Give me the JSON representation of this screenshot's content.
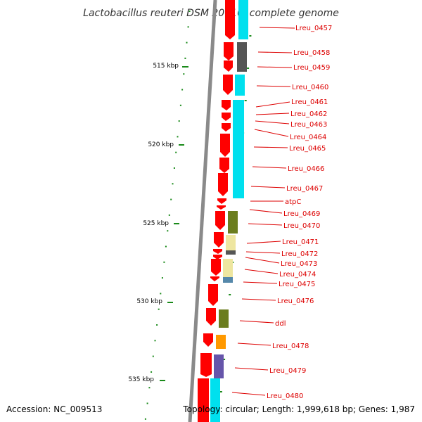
{
  "title": "Lactobacillus reuteri DSM 20016, complete genome",
  "accession": "Accession: NC_009513",
  "summary": "Topology: circular; Length: 1,999,618 bp; Genes: 1,987",
  "colors": {
    "gene_arrow": "#ff0000",
    "label": "#dd0000",
    "backbone": "#888888",
    "tick": "#1a8a1a",
    "cog_cyan": "#00e0ee",
    "cog_gray": "#555555",
    "cog_olive": "#6b7d1e",
    "cog_khaki": "#eee6a0",
    "cog_orange": "#ff9900",
    "cog_purple": "#6655aa"
  },
  "scale": {
    "kbp_labels": [
      "515 kbp",
      "520 kbp",
      "525 kbp",
      "530 kbp",
      "535 kbp"
    ]
  },
  "genes": [
    {
      "label": "Lreu_0457",
      "cog": "cyan"
    },
    {
      "label": "Lreu_0458",
      "cog": "gray"
    },
    {
      "label": "Lreu_0459",
      "cog": "gray"
    },
    {
      "label": "Lreu_0460",
      "cog": "cyan"
    },
    {
      "label": "Lreu_0461",
      "cog": "cyan"
    },
    {
      "label": "Lreu_0462",
      "cog": "cyan"
    },
    {
      "label": "Lreu_0463",
      "cog": "cyan"
    },
    {
      "label": "Lreu_0464",
      "cog": "cyan"
    },
    {
      "label": "Lreu_0465",
      "cog": "cyan"
    },
    {
      "label": "Lreu_0466",
      "cog": "cyan"
    },
    {
      "label": "Lreu_0467",
      "cog": "cyan"
    },
    {
      "label": "atpC",
      "cog": "cyan"
    },
    {
      "label": "Lreu_0469",
      "cog": "none"
    },
    {
      "label": "Lreu_0470",
      "cog": "olive"
    },
    {
      "label": "Lreu_0471",
      "cog": "khaki"
    },
    {
      "label": "Lreu_0472",
      "cog": "gray"
    },
    {
      "label": "Lreu_0473",
      "cog": "none"
    },
    {
      "label": "Lreu_0474",
      "cog": "khaki"
    },
    {
      "label": "Lreu_0475",
      "cog": "khaki"
    },
    {
      "label": "Lreu_0476",
      "cog": "none"
    },
    {
      "label": "ddl",
      "cog": "olive"
    },
    {
      "label": "Lreu_0478",
      "cog": "orange"
    },
    {
      "label": "Lreu_0479",
      "cog": "purple"
    },
    {
      "label": "Lreu_0480",
      "cog": "cyan"
    }
  ]
}
